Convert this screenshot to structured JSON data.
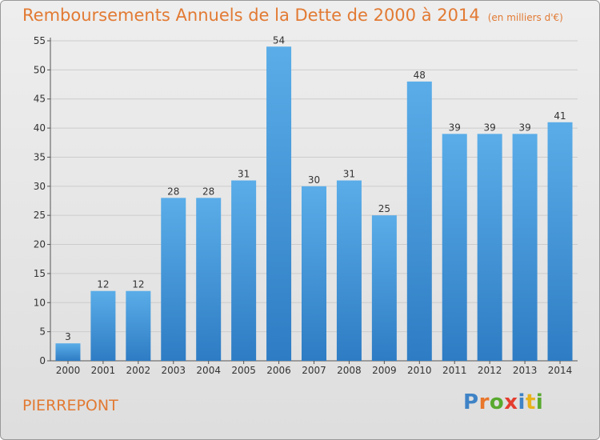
{
  "title": "Remboursements Annuels de la Dette de 2000 à 2014",
  "unit": "(en milliers d'€)",
  "commune": "PIERREPONT",
  "brand": {
    "letters": [
      "P",
      "r",
      "o",
      "x",
      "i",
      "t",
      "i"
    ],
    "colors": [
      "#3f83c6",
      "#e8762b",
      "#58a92e",
      "#e43d2f",
      "#3f83c6",
      "#e8b21b",
      "#58a92e"
    ]
  },
  "colors": {
    "bar_top": "#5aade8",
    "bar_bottom": "#2e7cc4",
    "grid": "#cccccc",
    "title": "#e27a33"
  },
  "chart_data": {
    "type": "bar",
    "title": "Remboursements Annuels de la Dette de 2000 à 2014",
    "categories": [
      "2000",
      "2001",
      "2002",
      "2003",
      "2004",
      "2005",
      "2006",
      "2007",
      "2008",
      "2009",
      "2010",
      "2011",
      "2012",
      "2013",
      "2014"
    ],
    "values": [
      3,
      12,
      12,
      28,
      28,
      31,
      54,
      30,
      31,
      25,
      48,
      39,
      39,
      39,
      41
    ],
    "ylim": [
      0,
      55
    ],
    "yticks": [
      0,
      5,
      10,
      15,
      20,
      25,
      30,
      35,
      40,
      45,
      50,
      55
    ],
    "grid": true,
    "xlabel": "",
    "ylabel": ""
  }
}
